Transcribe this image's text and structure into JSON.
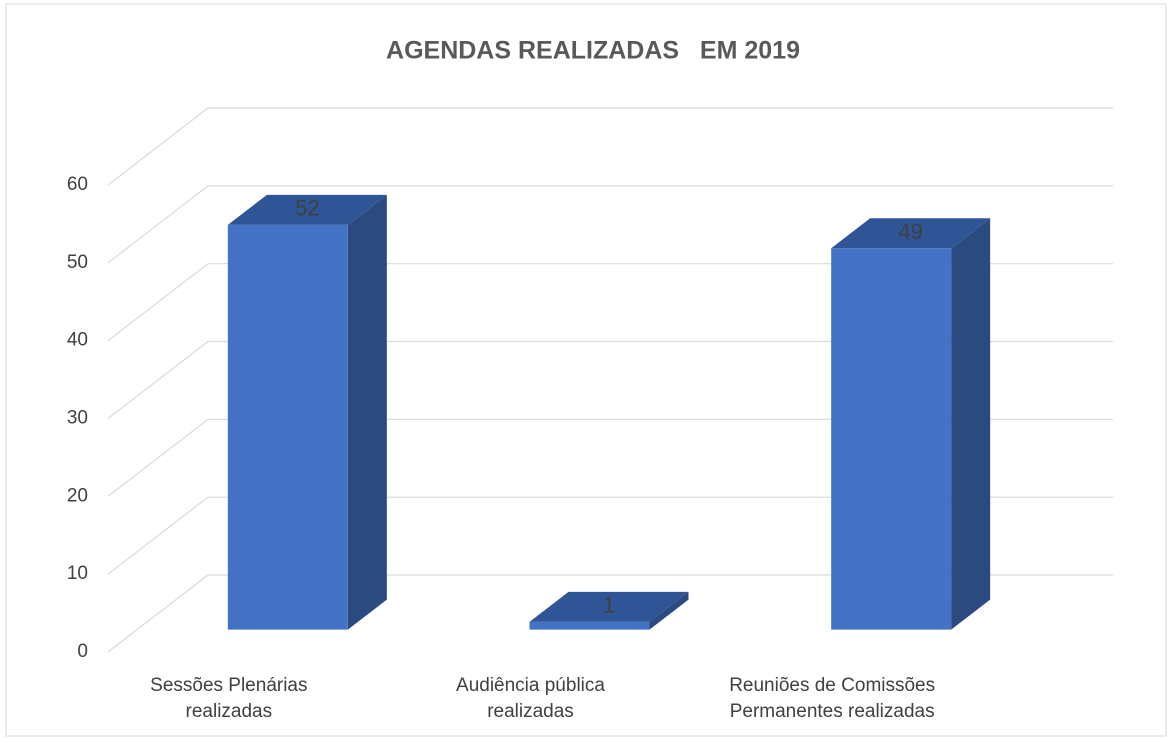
{
  "chart_data": {
    "type": "bar3d",
    "title": "AGENDAS REALIZADAS   EM 2019",
    "categories": [
      "Sessões Plenárias realizadas",
      "Audiência pública realizadas",
      "Reuniões de Comissões Permanentes realizadas"
    ],
    "values": [
      52,
      1,
      49
    ],
    "color": "#4472c4",
    "ylim": [
      0,
      60
    ],
    "yticks": [
      0,
      10,
      20,
      30,
      40,
      50,
      60
    ],
    "grid": true
  }
}
